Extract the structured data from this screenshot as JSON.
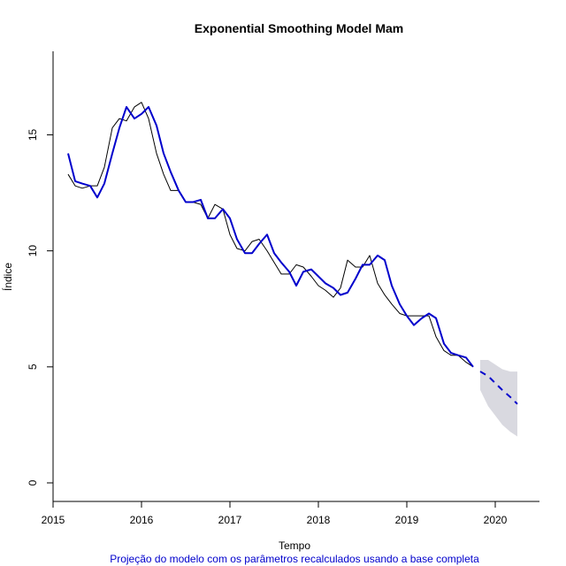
{
  "chart_data": {
    "type": "line",
    "title": "Exponential Smoothing Model Mam",
    "xlabel": "Tempo",
    "ylabel": "Índice",
    "caption": "Projeção do modelo com os parâmetros recalculados usando a base completa",
    "xlim": [
      2015.0,
      2020.5
    ],
    "ylim": [
      -0.8,
      18.6
    ],
    "x_ticks": [
      2015,
      2016,
      2017,
      2018,
      2019,
      2020
    ],
    "x_tick_labels": [
      "2015",
      "2016",
      "2017",
      "2018",
      "2019",
      "2020"
    ],
    "y_ticks": [
      0,
      5,
      10,
      15
    ],
    "y_tick_labels": [
      "0",
      "5",
      "10",
      "15"
    ],
    "grid": false,
    "legend": "none",
    "colors": {
      "actual": "#000000",
      "fitted": "#0000cc",
      "forecast": "#0000cc",
      "interval": "#d9d9e0",
      "caption": "#0000cc"
    },
    "series": [
      {
        "style": "thin-black",
        "x": [
          2015.17,
          2015.25,
          2015.33,
          2015.42,
          2015.5,
          2015.58,
          2015.67,
          2015.75,
          2015.83,
          2015.92,
          2016.0,
          2016.08,
          2016.17,
          2016.25,
          2016.33,
          2016.42,
          2016.5,
          2016.58,
          2016.67,
          2016.75,
          2016.83,
          2016.92,
          2017.0,
          2017.08,
          2017.17,
          2017.25,
          2017.33,
          2017.42,
          2017.5,
          2017.58,
          2017.67,
          2017.75,
          2017.83,
          2017.92,
          2018.0,
          2018.08,
          2018.17,
          2018.25,
          2018.33,
          2018.42,
          2018.5,
          2018.58,
          2018.67,
          2018.75,
          2018.83,
          2018.92,
          2019.0,
          2019.08,
          2019.17,
          2019.25,
          2019.33,
          2019.42,
          2019.5,
          2019.58,
          2019.67,
          2019.75
        ],
        "values": [
          13.3,
          12.8,
          12.7,
          12.8,
          12.8,
          13.6,
          15.3,
          15.7,
          15.6,
          16.2,
          16.4,
          15.7,
          14.2,
          13.3,
          12.6,
          12.6,
          12.1,
          12.1,
          12.0,
          11.4,
          12.0,
          11.8,
          10.7,
          10.1,
          10.0,
          10.4,
          10.5,
          10.0,
          9.5,
          9.0,
          9.0,
          9.4,
          9.3,
          8.9,
          8.5,
          8.3,
          8.0,
          8.4,
          9.6,
          9.3,
          9.3,
          9.8,
          8.6,
          8.1,
          7.7,
          7.3,
          7.2,
          7.2,
          7.2,
          7.2,
          6.3,
          5.7,
          5.5,
          5.5,
          5.2,
          5.0
        ]
      },
      {
        "style": "thick-blue",
        "x": [
          2015.17,
          2015.25,
          2015.33,
          2015.42,
          2015.5,
          2015.58,
          2015.67,
          2015.75,
          2015.83,
          2015.92,
          2016.0,
          2016.08,
          2016.17,
          2016.25,
          2016.33,
          2016.42,
          2016.5,
          2016.58,
          2016.67,
          2016.75,
          2016.83,
          2016.92,
          2017.0,
          2017.08,
          2017.17,
          2017.25,
          2017.33,
          2017.42,
          2017.5,
          2017.58,
          2017.67,
          2017.75,
          2017.83,
          2017.92,
          2018.0,
          2018.08,
          2018.17,
          2018.25,
          2018.33,
          2018.42,
          2018.5,
          2018.58,
          2018.67,
          2018.75,
          2018.83,
          2018.92,
          2019.0,
          2019.08,
          2019.17,
          2019.25,
          2019.33,
          2019.42,
          2019.5,
          2019.58,
          2019.67,
          2019.75
        ],
        "values": [
          14.2,
          13.0,
          12.9,
          12.8,
          12.3,
          12.9,
          14.2,
          15.3,
          16.2,
          15.7,
          15.9,
          16.2,
          15.4,
          14.2,
          13.4,
          12.6,
          12.1,
          12.1,
          12.2,
          11.4,
          11.4,
          11.8,
          11.4,
          10.5,
          9.9,
          9.9,
          10.3,
          10.7,
          9.9,
          9.5,
          9.1,
          8.5,
          9.1,
          9.2,
          8.9,
          8.6,
          8.4,
          8.1,
          8.2,
          8.8,
          9.4,
          9.4,
          9.8,
          9.6,
          8.5,
          7.7,
          7.2,
          6.8,
          7.1,
          7.3,
          7.1,
          6.0,
          5.6,
          5.5,
          5.4,
          5.0
        ]
      }
    ],
    "forecast": {
      "style": "dashed-blue",
      "x": [
        2019.83,
        2019.92,
        2020.0,
        2020.08,
        2020.17,
        2020.25
      ],
      "values": [
        4.8,
        4.6,
        4.3,
        4.0,
        3.7,
        3.4
      ],
      "lower": [
        4.0,
        3.3,
        2.9,
        2.5,
        2.2,
        2.0
      ],
      "upper": [
        5.3,
        5.3,
        5.1,
        4.9,
        4.8,
        4.8
      ]
    }
  }
}
